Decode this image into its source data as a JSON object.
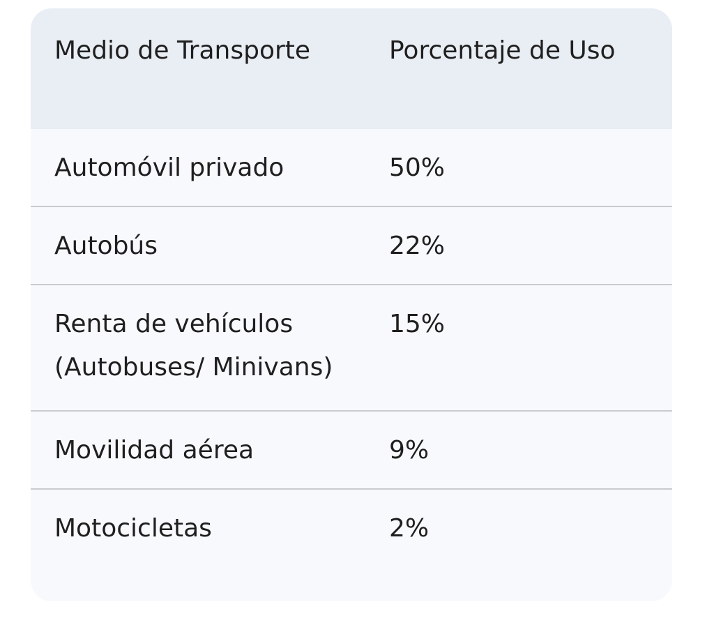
{
  "table": {
    "headers": [
      "Medio de Transporte",
      "Porcentaje de Uso"
    ],
    "rows": [
      {
        "mode": "Automóvil privado",
        "percent": "50%"
      },
      {
        "mode": "Autobús",
        "percent": "22%"
      },
      {
        "mode": "Renta de vehículos (Autobuses/ Minivans)",
        "percent": "15%"
      },
      {
        "mode": "Movilidad aérea",
        "percent": "9%"
      },
      {
        "mode": "Motocicletas",
        "percent": "2%"
      }
    ]
  }
}
